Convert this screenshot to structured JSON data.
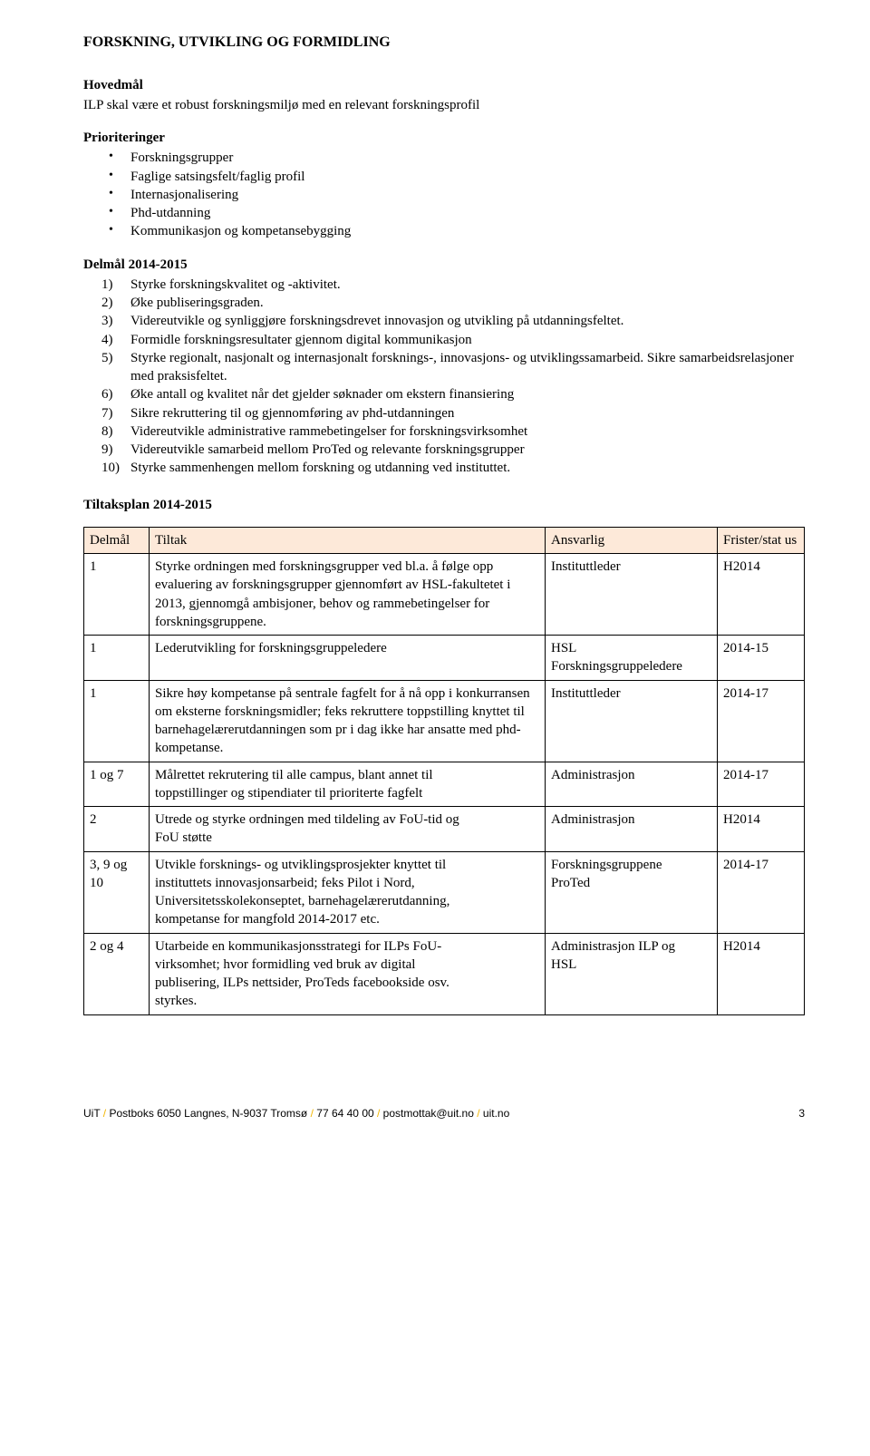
{
  "title": "FORSKNING, UTVIKLING OG FORMIDLING",
  "hovedmal_label": "Hovedmål",
  "hovedmal_text": "ILP skal være et robust forskningsmiljø med en relevant forskningsprofil",
  "prioriteringer_label": "Prioriteringer",
  "prioriteringer": [
    "Forskningsgrupper",
    "Faglige satsingsfelt/faglig profil",
    "Internasjonalisering",
    "Phd-utdanning",
    "Kommunikasjon og kompetansebygging"
  ],
  "delmal_label": "Delmål 2014-2015",
  "delmal": [
    "Styrke forskningskvalitet og -aktivitet.",
    "Øke publiseringsgraden.",
    "Videreutvikle og synliggjøre forskningsdrevet innovasjon og utvikling på utdanningsfeltet.",
    "Formidle forskningsresultater gjennom digital kommunikasjon",
    "Styrke regionalt, nasjonalt og internasjonalt forsknings-, innovasjons- og utviklingssamarbeid. Sikre samarbeidsrelasjoner med praksisfeltet.",
    "Øke antall og kvalitet når det gjelder søknader om ekstern finansiering",
    "Sikre rekruttering til og gjennomføring av phd-utdanningen",
    "Videreutvikle administrative rammebetingelser for forskningsvirksomhet",
    "Videreutvikle samarbeid mellom ProTed og relevante forskningsgrupper",
    "Styrke sammenhengen mellom forskning og utdanning ved instituttet."
  ],
  "tiltaksplan_label": "Tiltaksplan 2014-2015",
  "headers": {
    "delmal": "Delmål",
    "tiltak": "Tiltak",
    "ansvarlig": "Ansvarlig",
    "frist": "Frister/stat us"
  },
  "rows": [
    {
      "delmal": "1",
      "tiltak": "Styrke ordningen med forskningsgrupper ved bl.a. å følge opp evaluering av forskningsgrupper gjennomført av HSL-fakultetet i 2013, gjennomgå ambisjoner, behov og rammebetingelser for forskningsgruppene.",
      "ansvarlig": "Instituttleder",
      "frist": "H2014"
    },
    {
      "delmal": "1",
      "tiltak": "Lederutvikling for forskningsgruppeledere",
      "ansvarlig_lines": [
        "HSL",
        "Forskningsgruppeledere"
      ],
      "frist": "2014-15"
    },
    {
      "delmal": "1",
      "tiltak": "Sikre høy kompetanse på sentrale fagfelt for å nå opp i konkurransen om eksterne forskningsmidler; feks rekruttere toppstilling knyttet til barnehagelærerutdanningen som pr i dag ikke har ansatte med phd-kompetanse.",
      "ansvarlig": "Instituttleder",
      "frist": "2014-17"
    },
    {
      "delmal": "1 og 7",
      "tiltak_lines": [
        "Målrettet rekrutering til alle campus, blant annet til",
        "toppstillinger og stipendiater til prioriterte fagfelt"
      ],
      "ansvarlig": "Administrasjon",
      "frist": "2014-17"
    },
    {
      "delmal": "2",
      "tiltak_lines": [
        "Utrede og styrke ordningen med tildeling av FoU-tid og",
        "FoU støtte"
      ],
      "ansvarlig": "Administrasjon",
      "frist": "H2014"
    },
    {
      "delmal": "3, 9 og 10",
      "tiltak_lines": [
        "Utvikle forsknings- og utviklingsprosjekter knyttet til",
        "instituttets innovasjonsarbeid; feks Pilot i Nord,",
        "Universitetsskolekonseptet, barnehagelærerutdanning,",
        "kompetanse for mangfold 2014-2017 etc."
      ],
      "ansvarlig_lines": [
        "Forskningsgruppene",
        "ProTed"
      ],
      "frist": "2014-17"
    },
    {
      "delmal": "2 og 4",
      "tiltak_lines": [
        "Utarbeide en kommunikasjonsstrategi for ILPs FoU-",
        "virksomhet; hvor formidling ved bruk av digital",
        "publisering, ILPs nettsider, ProTeds facebookside osv.",
        "styrkes."
      ],
      "ansvarlig_lines": [
        "Administrasjon ILP og",
        "HSL"
      ],
      "frist": "H2014"
    }
  ],
  "footer": {
    "parts": [
      "UiT ",
      "/",
      " Postboks 6050 Langnes, N-9037 Tromsø ",
      "/",
      " 77 64 40 00 ",
      "/",
      " postmottak@uit.no ",
      "/",
      " uit.no"
    ],
    "page": "3"
  }
}
